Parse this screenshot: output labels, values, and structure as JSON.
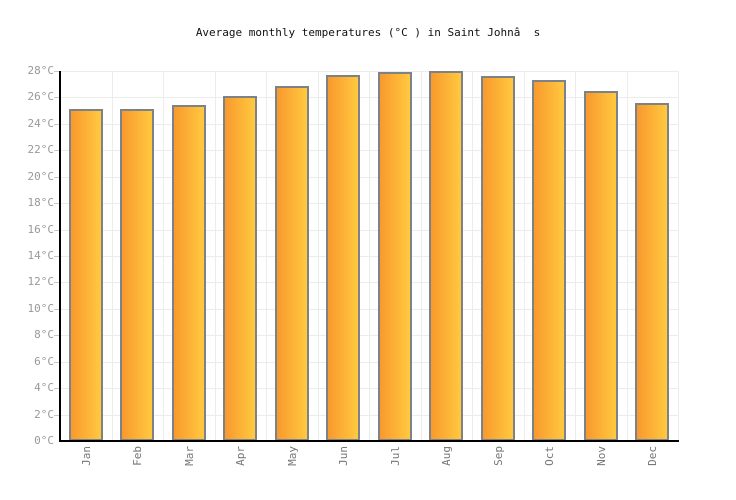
{
  "chart_data": {
    "type": "bar",
    "title": "Average monthly temperatures (°C ) in Saint Johnâ  s",
    "categories": [
      "Jan",
      "Feb",
      "Mar",
      "Apr",
      "May",
      "Jun",
      "Jul",
      "Aug",
      "Sep",
      "Oct",
      "Nov",
      "Dec"
    ],
    "values": [
      25.1,
      25.1,
      25.4,
      26.1,
      26.9,
      27.7,
      27.9,
      28.0,
      27.6,
      27.3,
      26.5,
      25.6
    ],
    "unit": "°C",
    "xlabel": "",
    "ylabel": "",
    "ylim": [
      0,
      28
    ],
    "ytick_step": 2,
    "ytick_labels": [
      "0°C",
      "2°C",
      "4°C",
      "6°C",
      "8°C",
      "10°C",
      "12°C",
      "14°C",
      "16°C",
      "18°C",
      "20°C",
      "22°C",
      "24°C",
      "26°C",
      "28°C"
    ],
    "grid": "on",
    "legend": "none"
  },
  "colors": {
    "background": "#FFFFFF",
    "bar_gradient_left": "#F9992E",
    "bar_gradient_right": "#FFC93F",
    "bar_border": "#7D8288",
    "grid": "#ECECEC",
    "axis": "#000000",
    "tick": "#C8C8C8",
    "y_label": "#999999",
    "month_label": "#777777",
    "title": "#111111"
  }
}
